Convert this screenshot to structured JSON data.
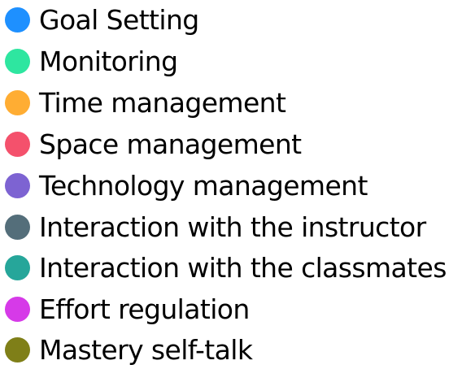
{
  "chart_data": {
    "type": "pie",
    "legend": [
      {
        "name": "Goal Setting",
        "color": "#1E90FF"
      },
      {
        "name": "Monitoring",
        "color": "#2EE6A0"
      },
      {
        "name": "Time management",
        "color": "#FFAD33"
      },
      {
        "name": "Space management",
        "color": "#F4516C"
      },
      {
        "name": "Technology management",
        "color": "#7D63D2"
      },
      {
        "name": "Interaction with the instructor",
        "color": "#546E7A"
      },
      {
        "name": "Interaction with the classmates",
        "color": "#26A69A"
      },
      {
        "name": "Effort regulation",
        "color": "#D63AE8"
      },
      {
        "name": "Mastery self-talk",
        "color": "#7F7F18"
      }
    ]
  }
}
